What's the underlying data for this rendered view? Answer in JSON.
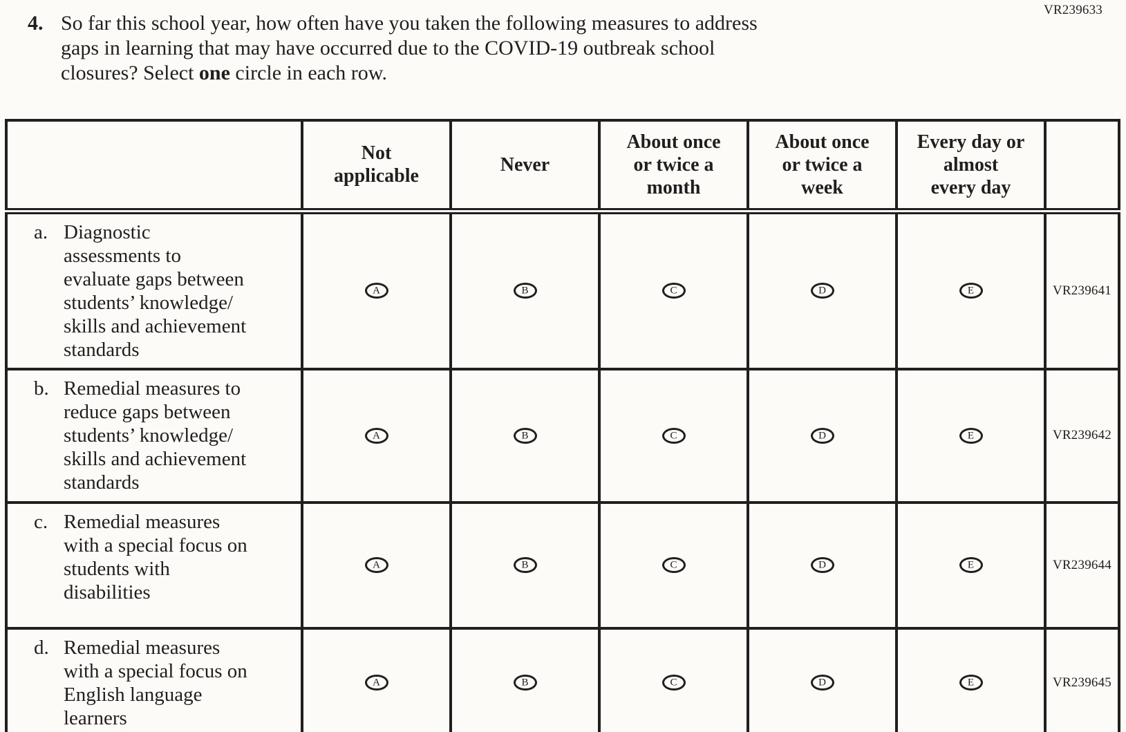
{
  "page": {
    "form_code": "VR239633"
  },
  "question": {
    "number": "4.",
    "line1": "So far this school year, how often have you taken the following measures to address",
    "line2": "gaps in learning that may have occurred due to the COVID-19 outbreak school",
    "line3_pre": "closures? Select ",
    "line3_bold": "one",
    "line3_post": " circle in each row."
  },
  "table": {
    "columns": [
      [
        "Not",
        "applicable"
      ],
      [
        "Never"
      ],
      [
        "About once",
        "or twice a",
        "month"
      ],
      [
        "About once",
        "or twice a",
        "week"
      ],
      [
        "Every day or",
        "almost",
        "every day"
      ]
    ],
    "option_letters": [
      "A",
      "B",
      "C",
      "D",
      "E"
    ],
    "rows": [
      {
        "letter": "a.",
        "label_lines": [
          "Diagnostic",
          "assessments to",
          "evaluate gaps between",
          "students’ knowledge/",
          "skills and achievement",
          "standards"
        ],
        "code": "VR239641"
      },
      {
        "letter": "b.",
        "label_lines": [
          "Remedial measures to",
          "reduce gaps between",
          "students’ knowledge/",
          "skills and achievement",
          "standards"
        ],
        "code": "VR239642"
      },
      {
        "letter": "c.",
        "label_lines": [
          "Remedial measures",
          "with a special focus on",
          "students with",
          "disabilities"
        ],
        "code": "VR239644"
      },
      {
        "letter": "d.",
        "label_lines": [
          "Remedial measures",
          "with a special focus on",
          "English language",
          "learners"
        ],
        "code": "VR239645"
      }
    ]
  }
}
